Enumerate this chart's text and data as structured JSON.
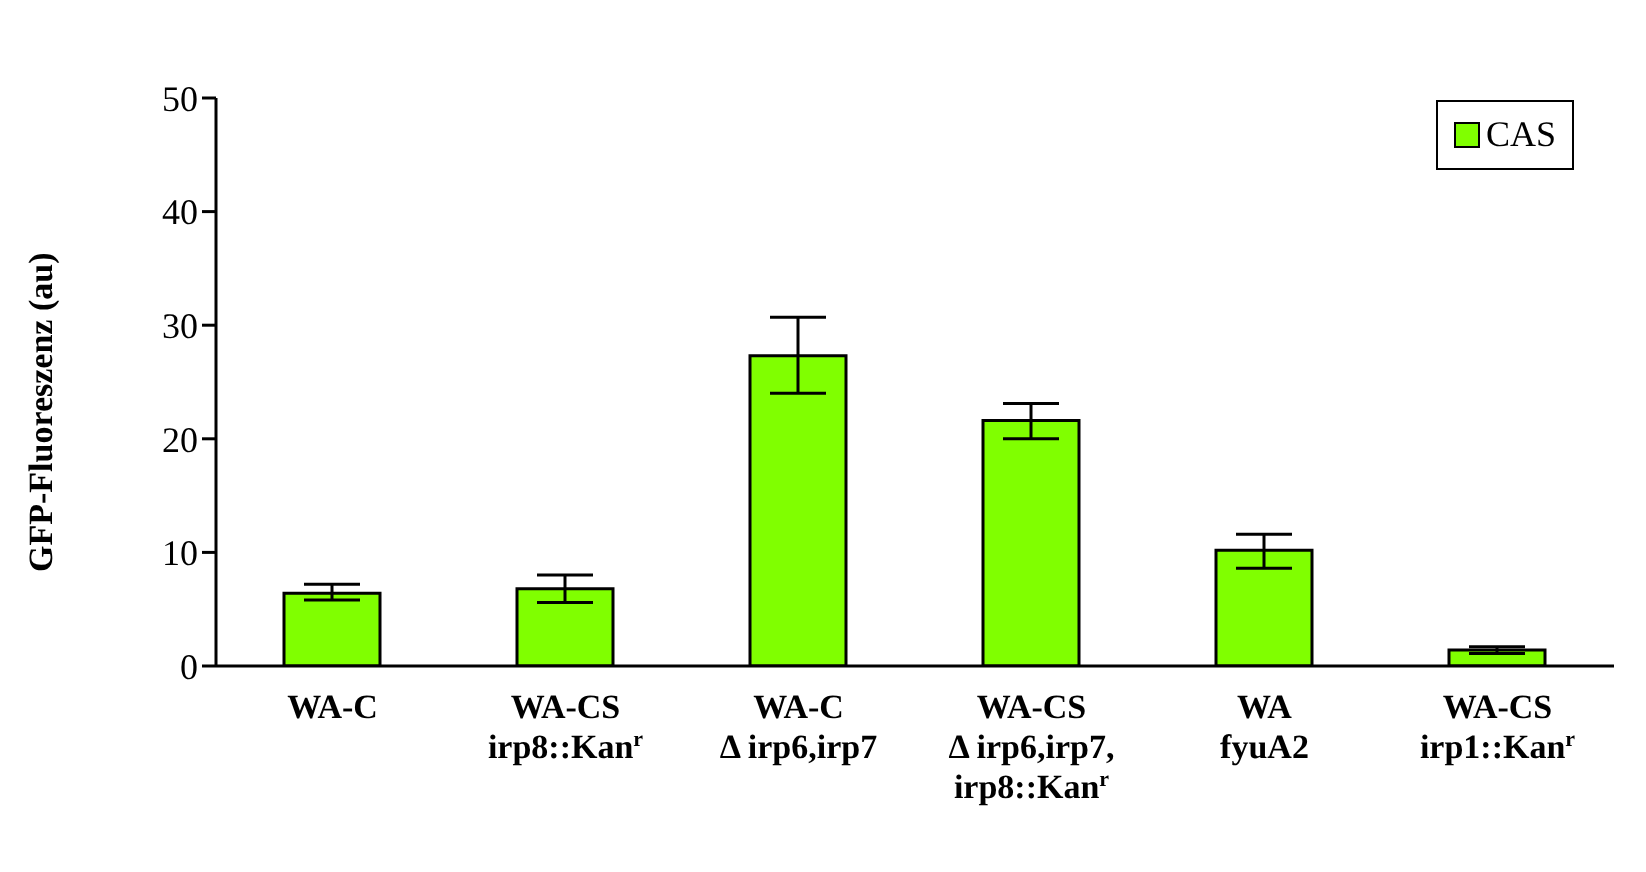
{
  "chart_data": {
    "type": "bar",
    "ylabel": "GFP-Fluoreszenz (au)",
    "categories": [
      "WA-C",
      "WA-CS\nirp8::Kan$^{r}$",
      "WA-C\nΔ irp6,irp7",
      "WA-CS\nΔ irp6,irp7,\nirp8::Kan$^{r}$",
      "WA\nfyuA2",
      "WA-CS\nirp1::Kan$^{r}$"
    ],
    "series": [
      {
        "name": "CAS",
        "color": "#80ff00",
        "values": [
          6.4,
          6.8,
          27.3,
          21.6,
          10.2,
          1.4
        ],
        "errors": [
          [
            5.8,
            7.2
          ],
          [
            5.6,
            8.0
          ],
          [
            24.0,
            30.7
          ],
          [
            20.0,
            23.1
          ],
          [
            8.6,
            11.6
          ],
          [
            1.1,
            1.7
          ]
        ]
      }
    ],
    "ylim": [
      0,
      50
    ],
    "yticks": [
      0,
      10,
      20,
      30,
      40,
      50
    ],
    "grid": false,
    "legend": "top right"
  }
}
